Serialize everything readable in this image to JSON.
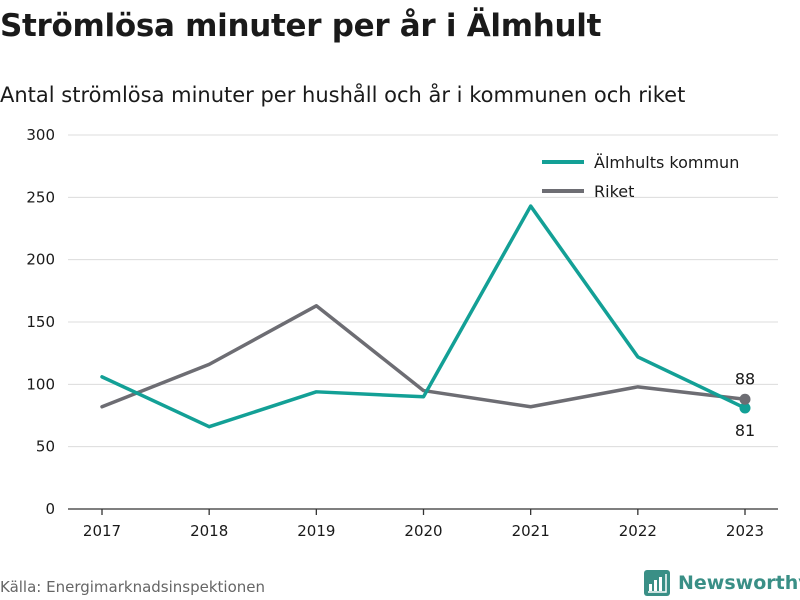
{
  "header": {
    "title": "Strömlösa minuter per år i Älmhult",
    "subtitle": "Antal strömlösa minuter per hushåll och år i kommunen och riket"
  },
  "footer": {
    "source": "Källa: Energimarknadsinspektionen",
    "brand": "Newsworthy",
    "brand_icon": "newsworthy-logo-icon"
  },
  "chart_data": {
    "type": "line",
    "title": "",
    "xlabel": "",
    "ylabel": "",
    "x": [
      "2017",
      "2018",
      "2019",
      "2020",
      "2021",
      "2022",
      "2023"
    ],
    "ylim": [
      0,
      300
    ],
    "yticks": [
      0,
      50,
      100,
      150,
      200,
      250,
      300
    ],
    "grid": true,
    "legend": "top-right",
    "series": [
      {
        "name": "Älmhults kommun",
        "color": "#13a096",
        "values": [
          106,
          66,
          94,
          90,
          243,
          122,
          81
        ],
        "end_label": "81"
      },
      {
        "name": "Riket",
        "color": "#6d6d73",
        "values": [
          82,
          116,
          163,
          95,
          82,
          98,
          88
        ],
        "end_label": "88"
      }
    ]
  }
}
